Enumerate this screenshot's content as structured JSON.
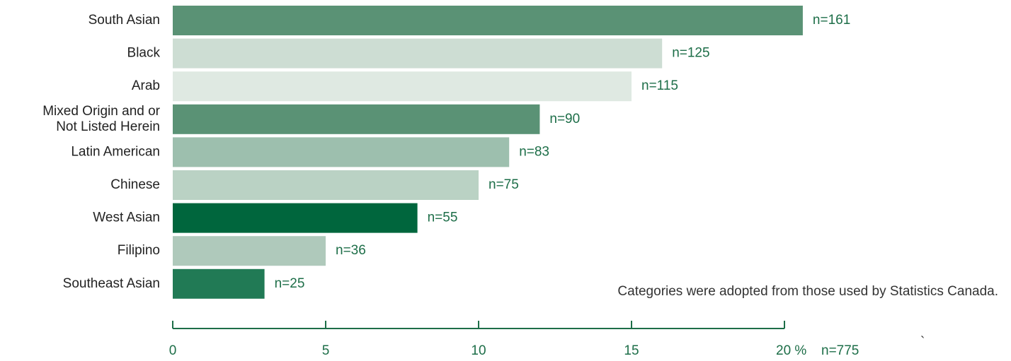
{
  "chart_data": {
    "type": "bar",
    "orientation": "horizontal",
    "categories": [
      "South Asian",
      "Black",
      "Arab",
      "Mixed Origin and or\nNot Listed Herein",
      "Latin American",
      "Chinese",
      "West Asian",
      "Filipino",
      "Southeast Asian"
    ],
    "values": [
      20.6,
      16,
      15,
      12,
      11,
      10,
      8,
      5,
      3
    ],
    "colors": [
      "#5a9275",
      "#cdddd3",
      "#dfe9e2",
      "#5a9275",
      "#9dbfae",
      "#bad2c4",
      "#00663d",
      "#afc9bb",
      "#217a55"
    ],
    "n_labels": [
      "n=161",
      "n=125",
      "n=115",
      "n=90",
      "n=83",
      "n=75",
      "n=55",
      "n=36",
      "n=25"
    ],
    "xlim": [
      0,
      20
    ],
    "xticks": [
      0,
      5,
      10,
      15,
      {
        "value": 20,
        "label": "20 %"
      }
    ],
    "total_label": "n=775",
    "stray_mark": "`",
    "note": "Categories were adopted from those used by Statistics Canada."
  }
}
